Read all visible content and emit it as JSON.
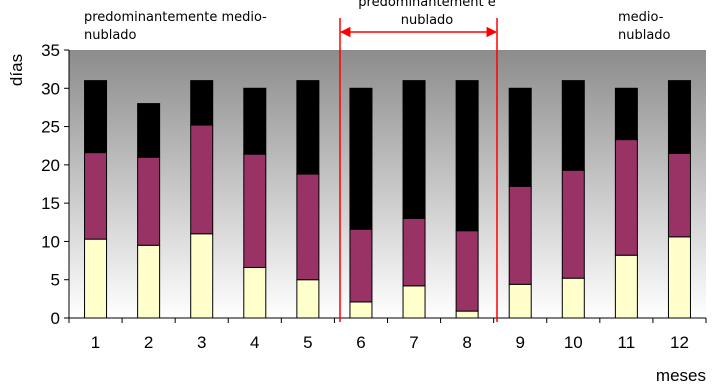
{
  "chart_data": {
    "type": "bar",
    "stacked": true,
    "categories": [
      "1",
      "2",
      "3",
      "4",
      "5",
      "6",
      "7",
      "8",
      "9",
      "10",
      "11",
      "12"
    ],
    "series": [
      {
        "values": [
          10.3,
          9.5,
          11.0,
          6.6,
          5.0,
          2.1,
          4.2,
          0.9,
          4.4,
          5.2,
          8.2,
          10.6
        ],
        "color": "#ffffcc"
      },
      {
        "values": [
          11.3,
          11.5,
          14.2,
          14.8,
          13.8,
          9.5,
          8.8,
          10.5,
          12.8,
          14.1,
          15.1,
          10.9
        ],
        "color": "#993366"
      },
      {
        "values": [
          9.4,
          7.0,
          5.8,
          8.6,
          12.2,
          18.4,
          18.0,
          19.6,
          12.8,
          11.7,
          6.7,
          9.5
        ],
        "color": "#000000"
      }
    ],
    "totals": [
      31,
      28,
      31,
      30,
      31,
      30,
      31,
      31,
      30,
      31,
      30,
      31
    ],
    "xlabel": "meses",
    "ylabel": "días",
    "ylim": [
      0,
      35
    ],
    "yticks": [
      "0",
      "5",
      "10",
      "15",
      "20",
      "25",
      "30",
      "35"
    ],
    "grid": false,
    "plot_background": "gradient gray to white",
    "annotations": {
      "left": "predominantemente medio-nublado",
      "center": "predominantement e nublado",
      "right": "medio-nublado"
    },
    "bracket_color": "#ff0000",
    "bracket_months": [
      "6",
      "7",
      "8"
    ]
  }
}
